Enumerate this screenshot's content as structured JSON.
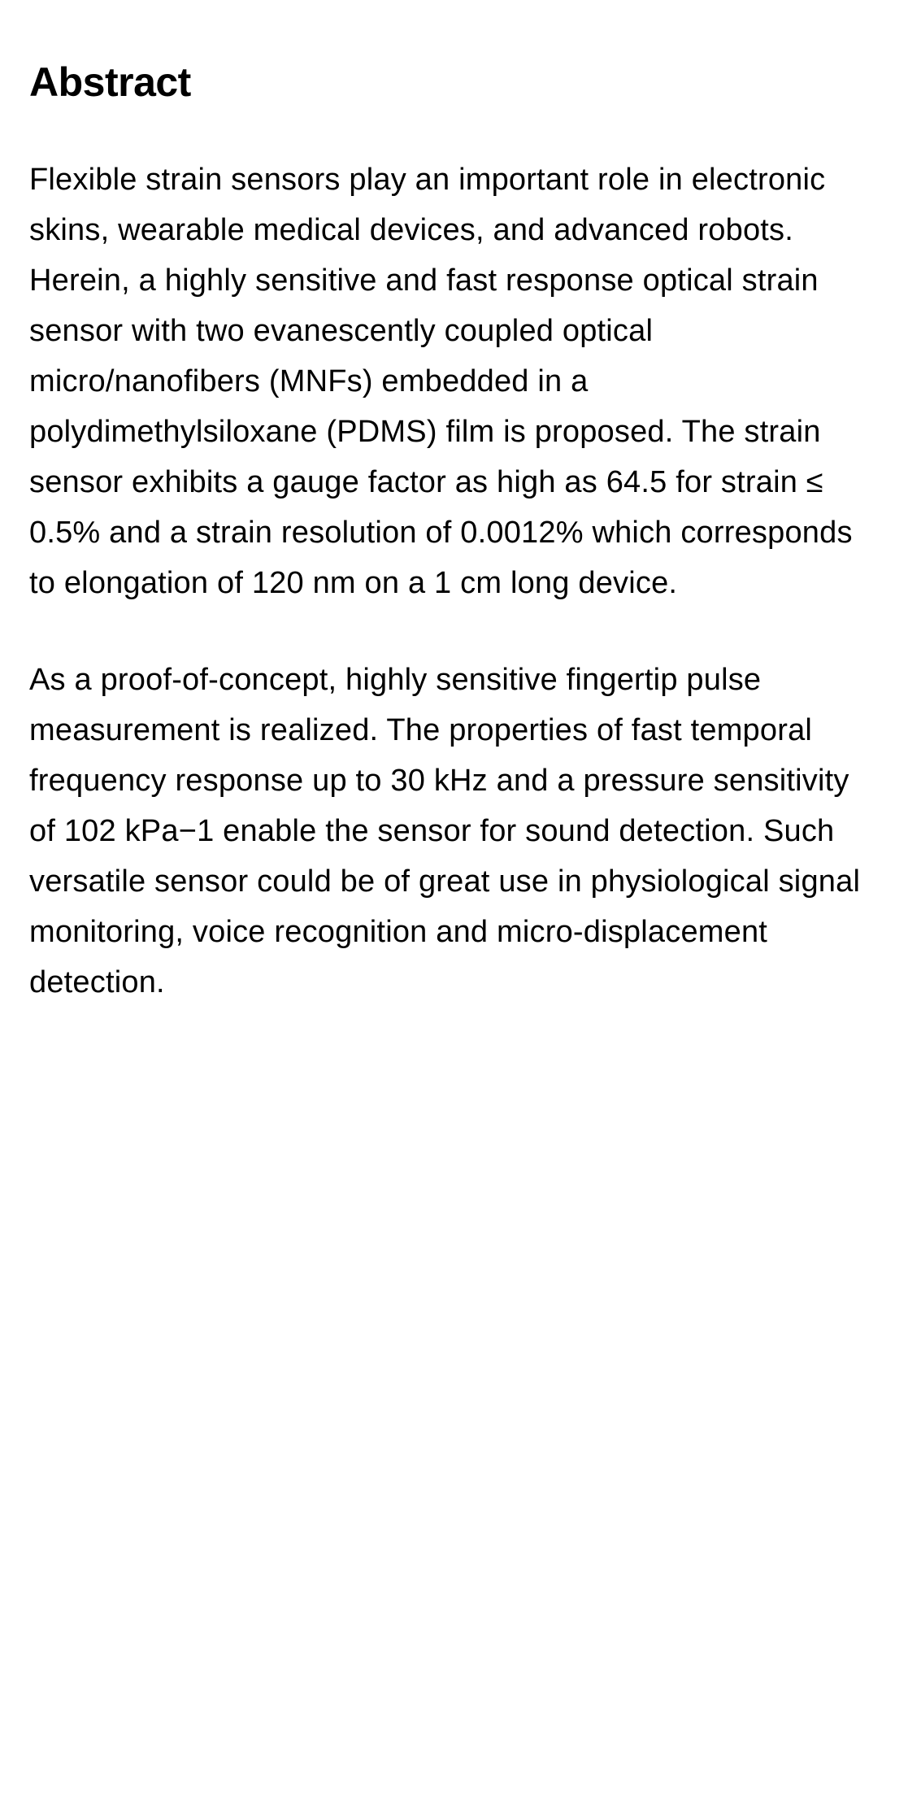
{
  "abstract": {
    "heading": "Abstract",
    "paragraph1": "Flexible strain sensors play an important role in electronic skins, wearable medical devices, and advanced robots. Herein, a highly sensitive and fast response optical strain sensor with two evanescently coupled optical micro/nanofibers (MNFs) embedded in a polydimethylsiloxane (PDMS) film is proposed. The strain sensor exhibits a gauge factor as high as 64.5 for strain ≤ 0.5% and a strain resolution of 0.0012% which corresponds to elongation of 120 nm on a 1 cm long device.",
    "paragraph2": "As a proof-of-concept, highly sensitive fingertip pulse measurement is realized. The properties of fast temporal frequency response up to 30 kHz and a pressure sensitivity of 102 kPa−1 enable the sensor for sound detection. Such versatile sensor could be of great use in physiological signal monitoring, voice recognition and micro-displacement detection."
  }
}
